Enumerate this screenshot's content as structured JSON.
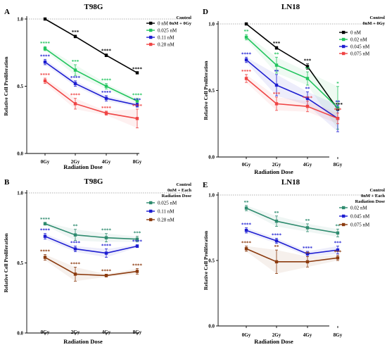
{
  "chart_data": [
    {
      "panel": "A",
      "title": "T98G",
      "type": "line",
      "xlabel": "Radiation Dose",
      "ylabel": "Relative Cell Proliferation",
      "categories": [
        "0Gy",
        "2Gy",
        "4Gy",
        "8Gy"
      ],
      "ylim": [
        0,
        1.0
      ],
      "yticks": [
        "0.0",
        "0.5",
        "1.0"
      ],
      "ref_line": 1.0,
      "control_label": [
        "Control",
        "0nM + 0Gy"
      ],
      "series": [
        {
          "name": "0 nM",
          "color": "#000000",
          "values": [
            1.0,
            0.87,
            0.73,
            0.6
          ],
          "errors": [
            0.0,
            0.01,
            0.01,
            0.005
          ],
          "stars": [
            "",
            "***",
            "****",
            "****"
          ]
        },
        {
          "name": "0.025 nM",
          "color": "#22c55e",
          "values": [
            0.78,
            0.62,
            0.5,
            0.39
          ],
          "errors": [
            0.015,
            0.04,
            0.02,
            0.02
          ],
          "stars": [
            "****",
            "***",
            "****",
            "****"
          ]
        },
        {
          "name": "0.11 nM",
          "color": "#1d1dd1",
          "values": [
            0.68,
            0.52,
            0.41,
            0.36
          ],
          "errors": [
            0.02,
            0.02,
            0.02,
            0.015
          ],
          "stars": [
            "****",
            "****",
            "****",
            "***"
          ]
        },
        {
          "name": "0.28 nM",
          "color": "#ef4444",
          "values": [
            0.54,
            0.37,
            0.3,
            0.26
          ],
          "errors": [
            0.02,
            0.04,
            0.015,
            0.07
          ],
          "stars": [
            "****",
            "****",
            "****",
            "****"
          ]
        }
      ]
    },
    {
      "panel": "D",
      "title": "LN18",
      "type": "line",
      "xlabel": "Radiation Dose",
      "ylabel": "Relative Cell Proliferation",
      "categories": [
        "0Gy",
        "2Gy",
        "4Gy",
        "8Gy"
      ],
      "ylim": [
        0,
        1.0
      ],
      "yticks": [
        "0.0",
        "0.5",
        "1.0"
      ],
      "ref_line": 1.0,
      "control_label": [
        "Control",
        "0nM + 0Gy"
      ],
      "series": [
        {
          "name": "0 nM",
          "color": "#000000",
          "values": [
            1.0,
            0.82,
            0.68,
            0.36
          ],
          "errors": [
            0.0,
            0.01,
            0.02,
            0.01
          ],
          "stars": [
            "",
            "***",
            "***",
            "****"
          ]
        },
        {
          "name": "0.02 nM",
          "color": "#22c55e",
          "values": [
            0.9,
            0.69,
            0.59,
            0.37
          ],
          "errors": [
            0.02,
            0.06,
            0.05,
            0.16
          ],
          "stars": [
            "**",
            "**",
            "**",
            "*"
          ]
        },
        {
          "name": "0.045 nM",
          "color": "#1d1dd1",
          "values": [
            0.73,
            0.54,
            0.44,
            0.29
          ],
          "errors": [
            0.02,
            0.08,
            0.05,
            0.1
          ],
          "stars": [
            "****",
            "**",
            "**",
            "**"
          ]
        },
        {
          "name": "0.075 nM",
          "color": "#ef4444",
          "values": [
            0.59,
            0.4,
            0.38,
            0.29
          ],
          "errors": [
            0.03,
            0.05,
            0.04,
            0.04
          ],
          "stars": [
            "****",
            "***",
            "****",
            "***"
          ]
        }
      ]
    },
    {
      "panel": "B",
      "title": "T98G",
      "type": "line",
      "xlabel": "Radiation Dose",
      "ylabel": "Relative Cell Proliferation",
      "categories": [
        "0Gy",
        "2Gy",
        "4Gy",
        "8Gy"
      ],
      "ylim": [
        0,
        1.0
      ],
      "yticks": [
        "0.0",
        "0.5",
        "1.0"
      ],
      "ref_line": 1.0,
      "control_label": [
        "Control",
        "0nM + Each",
        "Radiation Dose"
      ],
      "series": [
        {
          "name": "0.025 nM",
          "color": "#2e8b6e",
          "values": [
            0.78,
            0.7,
            0.68,
            0.67
          ],
          "errors": [
            0.01,
            0.04,
            0.03,
            0.02
          ],
          "stars": [
            "****",
            "**",
            "****",
            "***"
          ]
        },
        {
          "name": "0.11 nM",
          "color": "#1d1dd1",
          "values": [
            0.69,
            0.6,
            0.57,
            0.62
          ],
          "errors": [
            0.02,
            0.02,
            0.03,
            0.01
          ],
          "stars": [
            "****",
            "****",
            "****",
            "****"
          ]
        },
        {
          "name": "0.28 nM",
          "color": "#8b3a0e",
          "values": [
            0.54,
            0.42,
            0.41,
            0.44
          ],
          "errors": [
            0.02,
            0.05,
            0.01,
            0.02
          ],
          "stars": [
            "****",
            "****",
            "****",
            "****"
          ]
        }
      ]
    },
    {
      "panel": "E",
      "title": "LN18",
      "type": "line",
      "xlabel": "Radiation Dose",
      "ylabel": "Relative Cell Proliferation",
      "categories": [
        "0Gy",
        "2Gy",
        "4Gy",
        "8Gy"
      ],
      "ylim": [
        0,
        1.0
      ],
      "yticks": [
        "0.0",
        "0.5",
        "1.0"
      ],
      "ref_line": 1.0,
      "control_label": [
        "Control",
        "0nM + Each",
        "Radiation Dose"
      ],
      "series": [
        {
          "name": "0.02 nM",
          "color": "#2e8b6e",
          "values": [
            0.9,
            0.8,
            0.75,
            0.71
          ],
          "errors": [
            0.02,
            0.04,
            0.03,
            0.03
          ],
          "stars": [
            "**",
            "**",
            "**",
            "**"
          ]
        },
        {
          "name": "0.045 nM",
          "color": "#1d1dd1",
          "values": [
            0.73,
            0.65,
            0.55,
            0.58
          ],
          "errors": [
            0.02,
            0.02,
            0.02,
            0.03
          ],
          "stars": [
            "****",
            "****",
            "****",
            "***"
          ]
        },
        {
          "name": "0.075 nM",
          "color": "#8b3a0e",
          "values": [
            0.59,
            0.49,
            0.49,
            0.52
          ],
          "errors": [
            0.02,
            0.09,
            0.04,
            0.02
          ],
          "stars": [
            "****",
            "**",
            "**",
            "***"
          ]
        }
      ]
    }
  ]
}
